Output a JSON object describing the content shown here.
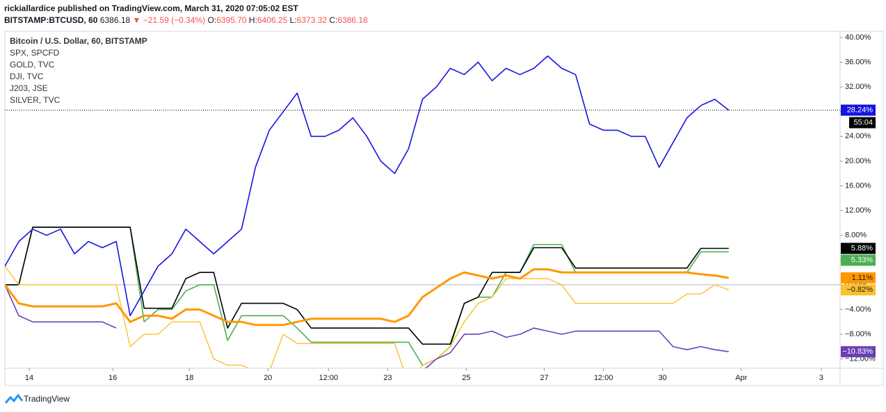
{
  "header": {
    "publisher": "rickiallardice published on TradingView.com, March 31, 2020 07:05:02 EST",
    "symbol": "BITSTAMP:BTCUSD, 60",
    "last": "6386.18",
    "arrow": "▼",
    "change": "−21.59 (−0.34%)",
    "open_label": "O:",
    "open": "6395.70",
    "high_label": "H:",
    "high": "6406.25",
    "low_label": "L:",
    "low": "6373.32",
    "close_label": "C:",
    "close": "6386.18"
  },
  "footer": {
    "brand": "TradingView"
  },
  "chart_data": {
    "type": "line",
    "x": [
      0,
      4,
      8,
      12,
      16,
      20,
      24,
      28,
      32,
      36,
      40,
      44,
      48,
      52,
      56,
      60,
      64,
      68,
      72,
      76,
      80,
      84,
      88,
      92,
      96,
      100,
      104,
      108,
      112,
      116,
      120,
      124,
      128,
      132,
      136,
      140,
      144,
      148,
      152,
      156,
      160,
      164,
      168,
      172,
      176,
      180,
      184,
      188,
      192,
      196,
      200,
      204,
      208
    ],
    "xlim": [
      0,
      240
    ],
    "xticks": [
      {
        "value": 7,
        "label": "14"
      },
      {
        "value": 31,
        "label": "16"
      },
      {
        "value": 53,
        "label": "18"
      },
      {
        "value": 75.6,
        "label": "20"
      },
      {
        "value": 93,
        "label": "12:00"
      },
      {
        "value": 110,
        "label": "23"
      },
      {
        "value": 132.6,
        "label": "25"
      },
      {
        "value": 155,
        "label": "27"
      },
      {
        "value": 172,
        "label": "12:00"
      },
      {
        "value": 189,
        "label": "30"
      },
      {
        "value": 211.6,
        "label": "Apr"
      },
      {
        "value": 234.6,
        "label": "3"
      }
    ],
    "ylim": [
      -13.5,
      41
    ],
    "yticks": [
      {
        "value": 40,
        "label": "40.00%"
      },
      {
        "value": 36,
        "label": "36.00%"
      },
      {
        "value": 32,
        "label": "32.00%"
      },
      {
        "value": 28,
        "label": "28.00%"
      },
      {
        "value": 24,
        "label": "24.00%"
      },
      {
        "value": 20,
        "label": "20.00%"
      },
      {
        "value": 16,
        "label": "16.00%"
      },
      {
        "value": 12,
        "label": "12.00%"
      },
      {
        "value": 8,
        "label": "8.00%"
      },
      {
        "value": 4,
        "label": "4.00%"
      },
      {
        "value": 0,
        "label": "0.00%"
      },
      {
        "value": -4,
        "label": "−4.00%"
      },
      {
        "value": -8,
        "label": "−8.00%"
      },
      {
        "value": -12,
        "label": "−12.00%"
      }
    ],
    "baseline": 0,
    "price_line": true,
    "countdown": "55:04",
    "series": [
      {
        "name": "Bitcoin / U.S. Dollar, 60, BITSTAMP",
        "color": "#1515e0",
        "width": 1.6,
        "last_label": "28.24%",
        "values": [
          3,
          7,
          9,
          8,
          9,
          5,
          7,
          6,
          7,
          -5,
          -1,
          3,
          5,
          9,
          7,
          5,
          7,
          9,
          19,
          25,
          28,
          31,
          24,
          24,
          25,
          27,
          24,
          20,
          18,
          22,
          30,
          32,
          35,
          34,
          36,
          33,
          35,
          34,
          35,
          37,
          35,
          34,
          26,
          25,
          25,
          24,
          24,
          19,
          23,
          27,
          29,
          30,
          28.24
        ]
      },
      {
        "name": "SPX, SPCFD",
        "color": "#4caf50",
        "width": 1.6,
        "last_label": "5.33%",
        "values": [
          0,
          0,
          9.3,
          9.3,
          9.3,
          9.3,
          9.3,
          9.3,
          9.3,
          9.3,
          -6,
          -4,
          -4,
          -1,
          0,
          0,
          -9,
          -5,
          -5,
          -5,
          -5,
          -7,
          -9.3,
          -9.3,
          -9.3,
          -9.3,
          -9.3,
          -9.3,
          -9.3,
          -9.3,
          -13,
          -12,
          -10,
          -3,
          -2,
          -2,
          2,
          2,
          6.5,
          6.5,
          6.5,
          2,
          2,
          2,
          2,
          2,
          2,
          2,
          2,
          2,
          5.33,
          5.33,
          5.33
        ]
      },
      {
        "name": "GOLD, TVC",
        "color": "#ff9800",
        "width": 3,
        "last_label": "1.11%",
        "values": [
          0,
          -3,
          -3.5,
          -3.5,
          -3.5,
          -3.5,
          -3.5,
          -3.5,
          -3,
          -6,
          -5,
          -5,
          -5.5,
          -4,
          -4,
          -5,
          -6,
          -6,
          -6.5,
          -6.5,
          -6.5,
          -6,
          -5.5,
          -5.5,
          -5.5,
          -5.5,
          -5.5,
          -5.5,
          -6,
          -5,
          -2,
          -0.5,
          1,
          2,
          1.5,
          1,
          1.5,
          1,
          2.5,
          2.5,
          2,
          2,
          2,
          2,
          2,
          2,
          2,
          2,
          2,
          2,
          1.7,
          1.5,
          1.11
        ]
      },
      {
        "name": "DJI, TVC",
        "color": "#000000",
        "width": 1.6,
        "last_label": "5.88%",
        "values": [
          0,
          0,
          9.3,
          9.3,
          9.3,
          9.3,
          9.3,
          9.3,
          9.3,
          9.3,
          -3.8,
          -3.8,
          -3.8,
          1,
          2,
          2,
          -7,
          -3,
          -3,
          -3,
          -3,
          -4,
          -7,
          -7,
          -7,
          -7,
          -7,
          -7,
          -7,
          -7,
          -9.6,
          -9.6,
          -9.6,
          -3,
          -2,
          2,
          2,
          2,
          6,
          6,
          6,
          2.7,
          2.7,
          2.7,
          2.7,
          2.7,
          2.7,
          2.7,
          2.7,
          2.7,
          5.88,
          5.88,
          5.88
        ]
      },
      {
        "name": "J203, JSE",
        "color": "#6a3fb5",
        "width": 1.6,
        "last_label": "−10.83%",
        "values": [
          0,
          -5,
          -6,
          -6,
          -6,
          -6,
          -6,
          -6,
          -7,
          null,
          null,
          null,
          null,
          null,
          null,
          null,
          null,
          null,
          null,
          null,
          null,
          null,
          null,
          null,
          null,
          null,
          null,
          null,
          null,
          null,
          -14,
          -12,
          -11,
          -8,
          -8,
          -7.5,
          -8.5,
          -8,
          -7,
          -7.5,
          -8,
          -7.5,
          -7.5,
          -7.5,
          -7.5,
          -7.5,
          -7.5,
          -7.5,
          -10,
          -10.5,
          -10,
          -10.5,
          -10.83
        ]
      },
      {
        "name": "SILVER, TVC",
        "color": "#fbc02d",
        "width": 1.4,
        "last_label": "−0.82%",
        "values": [
          3,
          0,
          0,
          0,
          0,
          0,
          0,
          0,
          0,
          -10,
          -8,
          -8,
          -6,
          -6,
          -6,
          -12,
          -13,
          -13,
          -14,
          -14,
          -8,
          -9.5,
          -9.5,
          -9.5,
          -9.5,
          -9.5,
          -9.5,
          -9.5,
          -9.5,
          -16,
          -13,
          -12,
          -10,
          -6,
          -3,
          -2,
          1,
          1,
          1,
          1,
          0,
          -3,
          -3,
          -3,
          -3,
          -3,
          -3,
          -3,
          -3,
          -1.5,
          -1.5,
          0,
          -0.82
        ]
      }
    ]
  }
}
